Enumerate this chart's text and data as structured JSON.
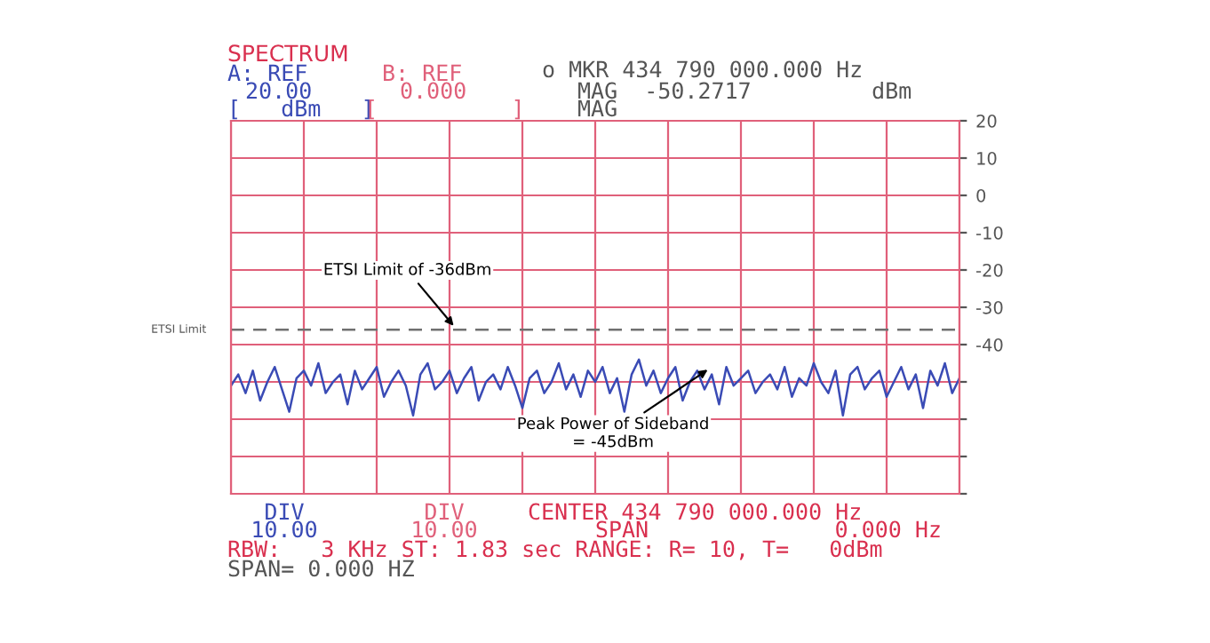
{
  "chart_data": {
    "type": "line",
    "title": "SPECTRUM",
    "categories": [
      null,
      null,
      null,
      null,
      null,
      null,
      null,
      null,
      null,
      null,
      null,
      null,
      null,
      null,
      null,
      null,
      null,
      null,
      null,
      null,
      null,
      null,
      null,
      null,
      null,
      null,
      null,
      null,
      null,
      null,
      null,
      null,
      null,
      null,
      null,
      null,
      null,
      null,
      null,
      null,
      null,
      null,
      null,
      null,
      null,
      null,
      null,
      null,
      null,
      null,
      null,
      null,
      null,
      null,
      null,
      null,
      null,
      null,
      null,
      null,
      null,
      null,
      null,
      null,
      null,
      null,
      null,
      null,
      null,
      null,
      null,
      null,
      null,
      null,
      null,
      null,
      null,
      null,
      null,
      null,
      null,
      null,
      null,
      null,
      null,
      null,
      null,
      null,
      null,
      null,
      null,
      null,
      null,
      null,
      null,
      null,
      null,
      null,
      null,
      null,
      null
    ],
    "series": [
      {
        "color": "#3a4bb5",
        "values": [
          -51,
          -48,
          -53,
          -47,
          -55,
          -50,
          -46,
          -52,
          -58,
          -49,
          -47,
          -51,
          -45,
          -53,
          -50,
          -48,
          -56,
          -47,
          -52,
          -49,
          -46,
          -54,
          -50,
          -47,
          -51,
          -59,
          -48,
          -45,
          -52,
          -50,
          -47,
          -53,
          -49,
          -46,
          -55,
          -50,
          -48,
          -52,
          -46,
          -51,
          -57,
          -49,
          -47,
          -53,
          -50,
          -45,
          -52,
          -48,
          -54,
          -47,
          -50,
          -46,
          -53,
          -49,
          -58,
          -48,
          -44,
          -51,
          -47,
          -53,
          -49,
          -46,
          -55,
          -50,
          -47,
          -52,
          -48,
          -56,
          -46,
          -51,
          -49,
          -47,
          -53,
          -50,
          -48,
          -52,
          -46,
          -54,
          -49,
          -51,
          -45,
          -50,
          -53,
          -47,
          -59,
          -48,
          -46,
          -52,
          -49,
          -47,
          -54,
          -50,
          -46,
          -52,
          -48,
          -57,
          -47,
          -51,
          -45,
          -53,
          -49
        ]
      }
    ],
    "ylim": [
      -80,
      20
    ],
    "yticks": [
      {
        "value": -80,
        "label": null
      },
      {
        "value": -70,
        "label": null
      },
      {
        "value": -60,
        "label": null
      },
      {
        "value": -50,
        "label": null
      },
      -40,
      -30,
      -20,
      -10,
      0,
      10,
      20
    ],
    "tick_labels": "y",
    "grid": true,
    "marker": "none",
    "line_style": "solid",
    "ref_lines": [
      {
        "axis": "y",
        "value": -36,
        "label": "ETSI Limit",
        "color": "#707070",
        "line_style": "dashed"
      }
    ],
    "annotations": [
      "A: REF",
      "20.00",
      "[   dBm   ]",
      "B: REF",
      "0.000",
      "[          ]",
      "o MKR 434 790 000.000 Hz",
      "MAG  -50.2717         dBm",
      "MAG",
      "ETSI Limit of -36dBm",
      "Peak Power of Sideband\n= -45dBm",
      "DIV",
      "10.00",
      "DIV",
      "10.00",
      "CENTER 434 790 000.000 Hz",
      "SPAN",
      "0.000 Hz",
      "RBW:   3 KHz ST: 1.83 sec RANGE: R= 10, T=   0dBm",
      "SPAN= 0.000 HZ"
    ]
  }
}
